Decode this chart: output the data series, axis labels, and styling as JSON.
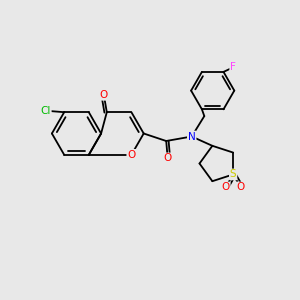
{
  "background_color": "#e8e8e8",
  "bond_color": "#000000",
  "atom_colors": {
    "O": "#ff0000",
    "N": "#0000ff",
    "Cl": "#00bb00",
    "S": "#cccc00",
    "F": "#ff44ff",
    "C": "#000000"
  }
}
